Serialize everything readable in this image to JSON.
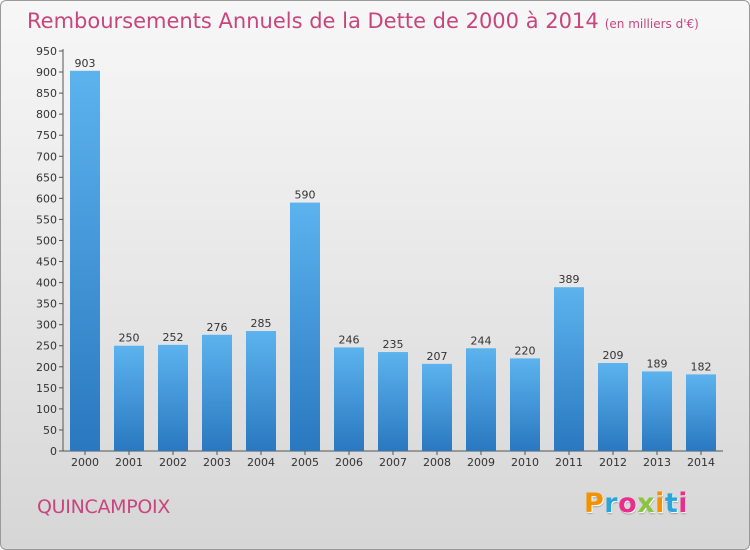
{
  "header": {
    "title": "Remboursements Annuels de la Dette de 2000 à 2014",
    "unit": "(en milliers d'€)"
  },
  "footer": {
    "commune": "QUINCAMPOIX",
    "logo_text": "Proxiti",
    "logo_colors": [
      "#f39200",
      "#2aa4d9",
      "#e8308a",
      "#8bc53f",
      "#f39200",
      "#2aa4d9",
      "#e8308a"
    ]
  },
  "chart_data": {
    "type": "bar",
    "title": "Remboursements Annuels de la Dette de 2000 à 2014",
    "categories": [
      "2000",
      "2001",
      "2002",
      "2003",
      "2004",
      "2005",
      "2006",
      "2007",
      "2008",
      "2009",
      "2010",
      "2011",
      "2012",
      "2013",
      "2014"
    ],
    "values": [
      903,
      250,
      252,
      276,
      285,
      590,
      246,
      235,
      207,
      244,
      220,
      389,
      209,
      189,
      182
    ],
    "ylim": [
      0,
      950
    ],
    "yticks": [
      0,
      50,
      100,
      150,
      200,
      250,
      300,
      350,
      400,
      450,
      500,
      550,
      600,
      650,
      700,
      750,
      800,
      850,
      900,
      950
    ],
    "grid": false,
    "bar_color": "#3d8fd6"
  }
}
